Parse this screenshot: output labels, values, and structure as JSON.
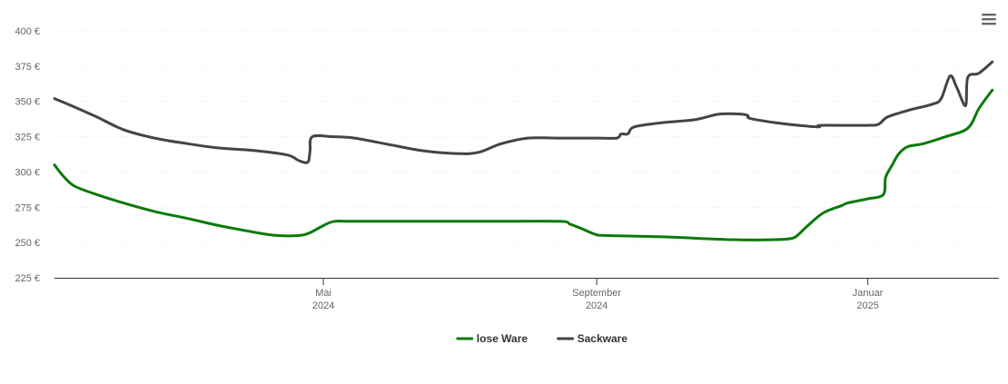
{
  "chart_data": {
    "type": "line",
    "title": "",
    "xlabel": "",
    "ylabel": "",
    "ylim": [
      225,
      400
    ],
    "y_ticks": [
      225,
      250,
      275,
      300,
      325,
      350,
      375,
      400
    ],
    "y_tick_suffix": " €",
    "y_tick_labels": [
      "225 €",
      "250 €",
      "275 €",
      "300 €",
      "325 €",
      "350 €",
      "375 €",
      "400 €"
    ],
    "xlim": [
      "2024-01-01",
      "2025-03-01"
    ],
    "x_ticks": [
      {
        "date": "2024-05-01",
        "month": "Mai",
        "year": "2024"
      },
      {
        "date": "2024-09-01",
        "month": "September",
        "year": "2024"
      },
      {
        "date": "2025-01-01",
        "month": "Januar",
        "year": "2025"
      }
    ],
    "grid": true,
    "legend": "bottom-center",
    "series": [
      {
        "name": "lose Ware",
        "color": "#0a7a0a",
        "points": [
          [
            "2024-01-01",
            305
          ],
          [
            "2024-01-05",
            297
          ],
          [
            "2024-01-10",
            290
          ],
          [
            "2024-01-20",
            284
          ],
          [
            "2024-02-01",
            278
          ],
          [
            "2024-02-15",
            272
          ],
          [
            "2024-03-01",
            267
          ],
          [
            "2024-03-15",
            262
          ],
          [
            "2024-04-01",
            257
          ],
          [
            "2024-04-10",
            255
          ],
          [
            "2024-04-20",
            255
          ],
          [
            "2024-04-25",
            257
          ],
          [
            "2024-05-01",
            262
          ],
          [
            "2024-05-06",
            265
          ],
          [
            "2024-05-15",
            265
          ],
          [
            "2024-06-15",
            265
          ],
          [
            "2024-07-15",
            265
          ],
          [
            "2024-08-15",
            265
          ],
          [
            "2024-08-20",
            263
          ],
          [
            "2024-08-25",
            260
          ],
          [
            "2024-08-31",
            256
          ],
          [
            "2024-09-05",
            255
          ],
          [
            "2024-10-01",
            254
          ],
          [
            "2024-11-01",
            252
          ],
          [
            "2024-11-20",
            252
          ],
          [
            "2024-11-28",
            253
          ],
          [
            "2024-12-01",
            256
          ],
          [
            "2024-12-05",
            262
          ],
          [
            "2024-12-12",
            271
          ],
          [
            "2024-12-20",
            276
          ],
          [
            "2024-12-23",
            278
          ],
          [
            "2025-01-01",
            281
          ],
          [
            "2025-01-08",
            284
          ],
          [
            "2025-01-09",
            296
          ],
          [
            "2025-01-12",
            305
          ],
          [
            "2025-01-15",
            313
          ],
          [
            "2025-01-19",
            318
          ],
          [
            "2025-01-26",
            320
          ],
          [
            "2025-02-05",
            325
          ],
          [
            "2025-02-15",
            331
          ],
          [
            "2025-02-20",
            345
          ],
          [
            "2025-02-26",
            358
          ]
        ]
      },
      {
        "name": "Sackware",
        "color": "#434348",
        "points": [
          [
            "2024-01-01",
            352
          ],
          [
            "2024-01-10",
            346
          ],
          [
            "2024-01-20",
            339
          ],
          [
            "2024-02-01",
            330
          ],
          [
            "2024-02-15",
            324
          ],
          [
            "2024-03-01",
            320
          ],
          [
            "2024-03-15",
            317
          ],
          [
            "2024-04-01",
            315
          ],
          [
            "2024-04-15",
            312
          ],
          [
            "2024-04-20",
            308
          ],
          [
            "2024-04-24",
            307
          ],
          [
            "2024-04-25",
            315
          ],
          [
            "2024-04-26",
            325
          ],
          [
            "2024-05-05",
            325
          ],
          [
            "2024-05-15",
            324
          ],
          [
            "2024-06-01",
            319
          ],
          [
            "2024-06-15",
            315
          ],
          [
            "2024-07-01",
            313
          ],
          [
            "2024-07-10",
            314
          ],
          [
            "2024-07-20",
            320
          ],
          [
            "2024-08-01",
            324
          ],
          [
            "2024-08-15",
            324
          ],
          [
            "2024-09-01",
            324
          ],
          [
            "2024-09-10",
            324
          ],
          [
            "2024-09-12",
            327
          ],
          [
            "2024-09-15",
            327
          ],
          [
            "2024-09-18",
            332
          ],
          [
            "2024-10-01",
            335
          ],
          [
            "2024-10-15",
            337
          ],
          [
            "2024-10-26",
            341
          ],
          [
            "2024-11-05",
            341
          ],
          [
            "2024-11-08",
            340
          ],
          [
            "2024-11-09",
            338
          ],
          [
            "2024-11-20",
            335
          ],
          [
            "2024-12-01",
            333
          ],
          [
            "2024-12-10",
            332
          ],
          [
            "2024-12-11",
            333
          ],
          [
            "2025-01-01",
            333
          ],
          [
            "2025-01-06",
            334
          ],
          [
            "2025-01-10",
            339
          ],
          [
            "2025-01-20",
            344
          ],
          [
            "2025-01-30",
            348
          ],
          [
            "2025-02-03",
            352
          ],
          [
            "2025-02-07",
            368
          ],
          [
            "2025-02-10",
            360
          ],
          [
            "2025-02-14",
            347
          ],
          [
            "2025-02-15",
            367
          ],
          [
            "2025-02-20",
            370
          ],
          [
            "2025-02-26",
            378
          ]
        ]
      }
    ]
  },
  "menu": {
    "icon": "hamburger-icon"
  }
}
